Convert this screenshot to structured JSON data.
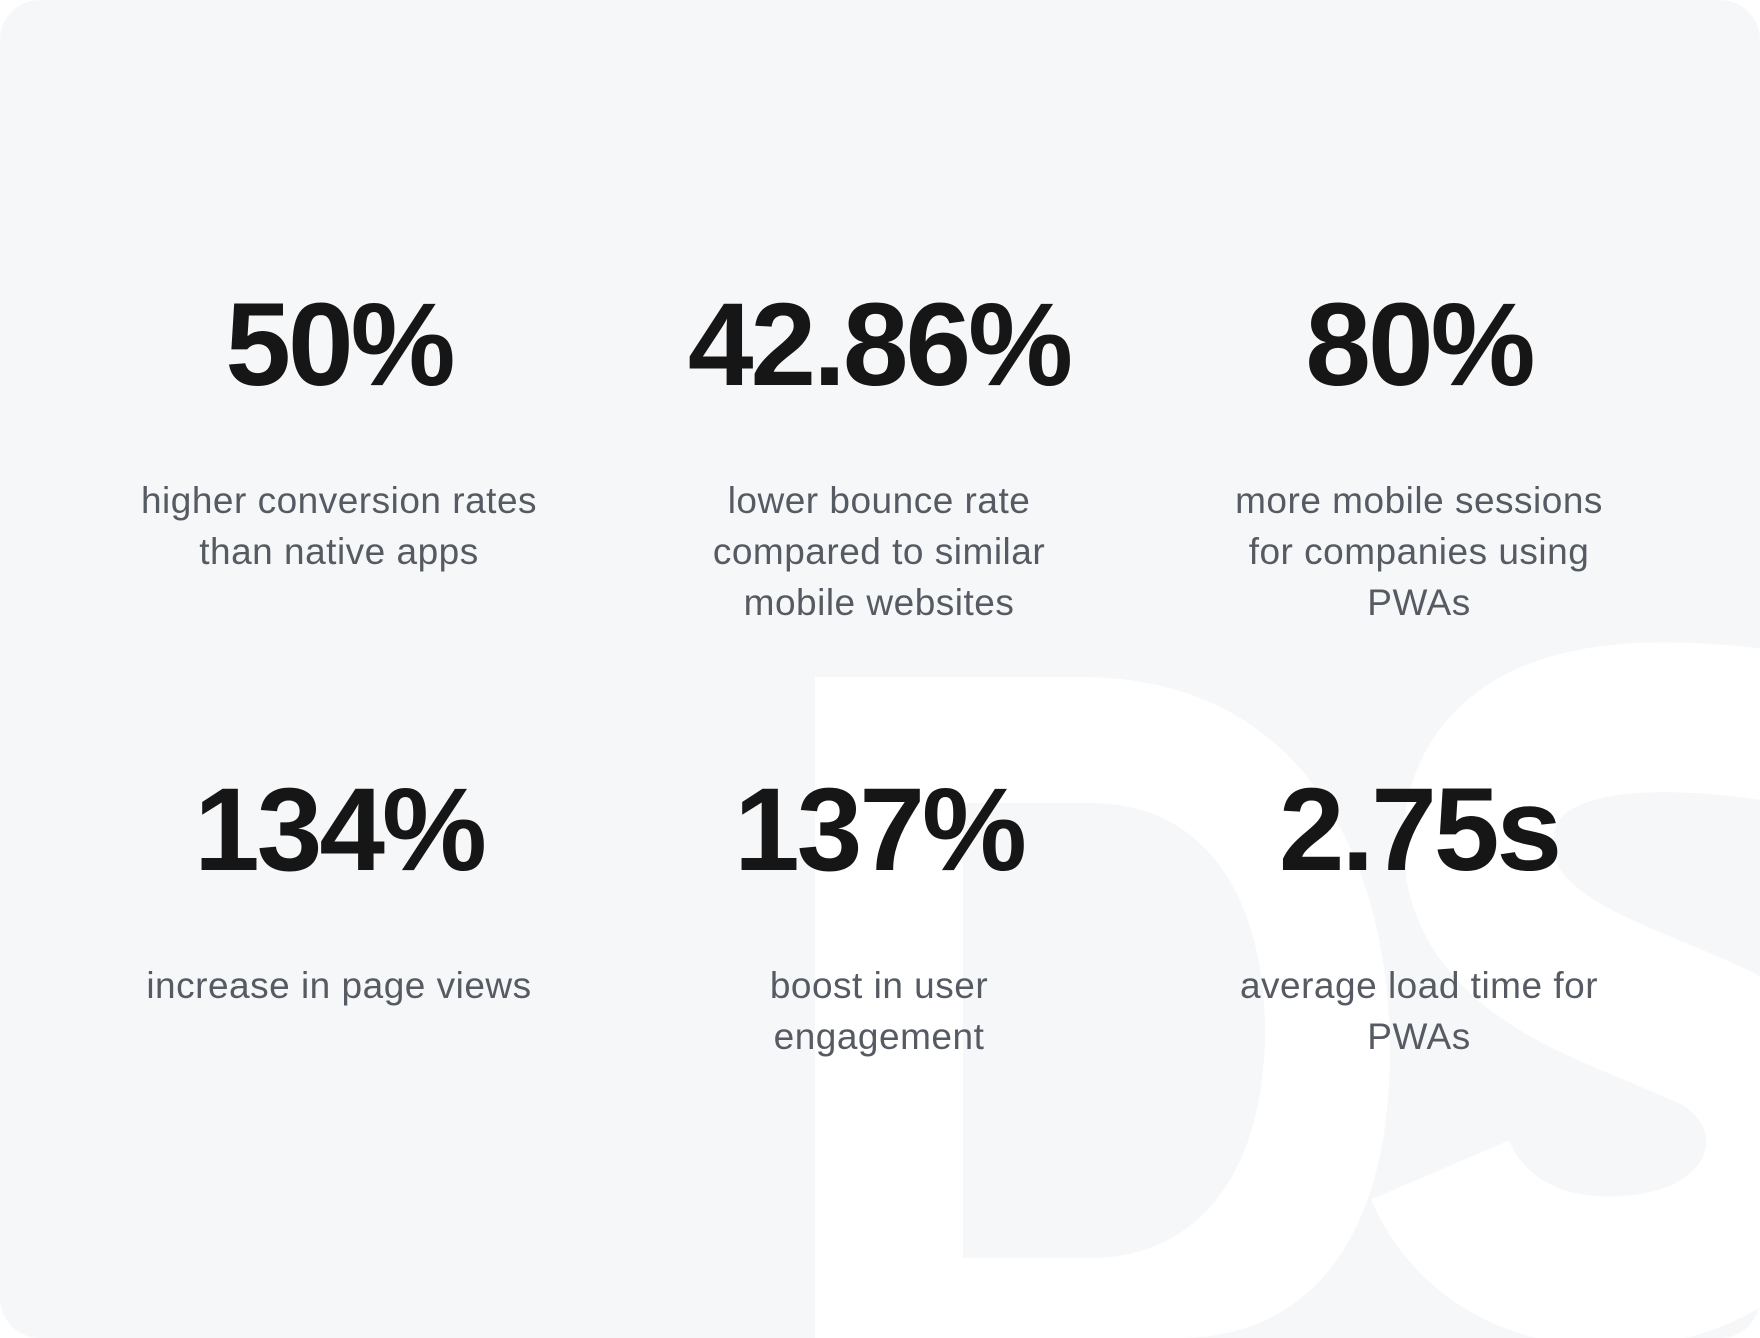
{
  "stats": [
    {
      "value": "50%",
      "label": "higher conversion rates than native apps"
    },
    {
      "value": "42.86%",
      "label": "lower bounce rate compared to similar mobile websites"
    },
    {
      "value": "80%",
      "label": "more mobile sessions for companies using PWAs"
    },
    {
      "value": "134%",
      "label": "increase in page views"
    },
    {
      "value": "137%",
      "label": "boost in user engagement"
    },
    {
      "value": "2.75s",
      "label": "average load time for PWAs"
    }
  ]
}
